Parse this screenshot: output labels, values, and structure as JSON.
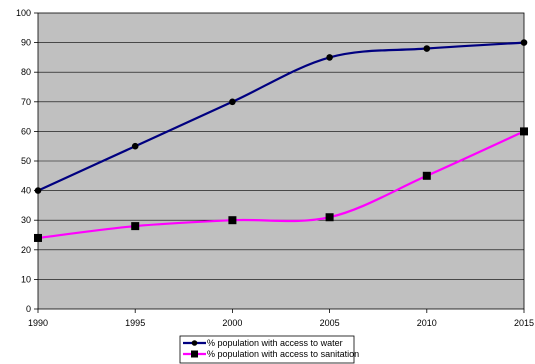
{
  "chart_data": {
    "type": "line",
    "title": "",
    "xlabel": "",
    "ylabel": "",
    "x": [
      1990,
      1995,
      2000,
      2005,
      2010,
      2015
    ],
    "xlim": [
      1990,
      2015
    ],
    "ylim": [
      0,
      100
    ],
    "y_ticks": [
      0,
      10,
      20,
      30,
      40,
      50,
      60,
      70,
      80,
      90,
      100
    ],
    "x_tick_labels": [
      "1990",
      "1995",
      "2000",
      "2005",
      "2010",
      "2015"
    ],
    "y_tick_labels": [
      "0",
      "10",
      "20",
      "30",
      "40",
      "50",
      "60",
      "70",
      "80",
      "90",
      "100"
    ],
    "grid": "horizontal",
    "plot_background": "#c0c0c0",
    "legend_position": "bottom-center",
    "series": [
      {
        "name": "% population with access to water",
        "values": [
          40,
          55,
          70,
          85,
          88,
          90
        ],
        "color": "#000080",
        "marker": "circle",
        "smooth": true
      },
      {
        "name": "% population with access to sanitation",
        "values": [
          24,
          28,
          30,
          31,
          45,
          60
        ],
        "color": "#ff00ff",
        "marker": "square",
        "smooth": true
      }
    ]
  }
}
